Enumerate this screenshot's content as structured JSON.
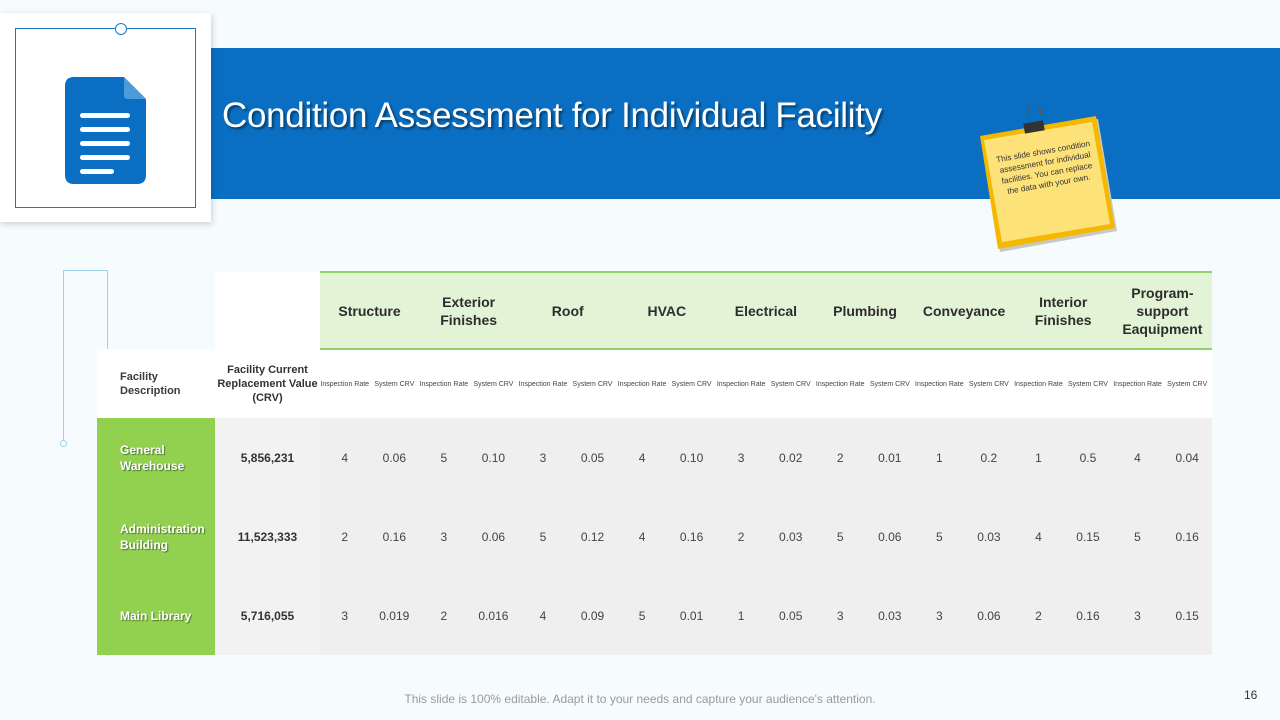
{
  "title": "Condition Assessment for Individual Facility",
  "note": "This slide shows condition assessment for individual facilities. You can replace the data with your own.",
  "table": {
    "facility_description_label": "Facility Description",
    "crv_label": "Facility Current Replacement Value (CRV)",
    "categories": [
      "Structure",
      "Exterior Finishes",
      "Roof",
      "HVAC",
      "Electrical",
      "Plumbing",
      "Conveyance",
      "Interior Finishes",
      "Program-support Eaquipment"
    ],
    "sub_headers": {
      "rate": "Inspection Rate",
      "crv": "System CRV"
    },
    "rows": [
      {
        "name": "General Warehouse",
        "crv": "5,856,231",
        "values": [
          "4",
          "0.06",
          "5",
          "0.10",
          "3",
          "0.05",
          "4",
          "0.10",
          "3",
          "0.02",
          "2",
          "0.01",
          "1",
          "0.2",
          "1",
          "0.5",
          "4",
          "0.04"
        ]
      },
      {
        "name": "Administration Building",
        "crv": "11,523,333",
        "values": [
          "2",
          "0.16",
          "3",
          "0.06",
          "5",
          "0.12",
          "4",
          "0.16",
          "2",
          "0.03",
          "5",
          "0.06",
          "5",
          "0.03",
          "4",
          "0.15",
          "5",
          "0.16"
        ]
      },
      {
        "name": "Main Library",
        "crv": "5,716,055",
        "values": [
          "3",
          "0.019",
          "2",
          "0.016",
          "4",
          "0.09",
          "5",
          "0.01",
          "1",
          "0.05",
          "3",
          "0.03",
          "3",
          "0.06",
          "2",
          "0.16",
          "3",
          "0.15"
        ]
      }
    ]
  },
  "footer": "This slide is 100% editable. Adapt it to your needs and capture your audience's attention.",
  "page_number": "16",
  "colors": {
    "banner": "#0a6fc2",
    "accent_green": "#92d050",
    "header_green": "#e3f3d6",
    "note_yellow": "#fbd13c"
  }
}
